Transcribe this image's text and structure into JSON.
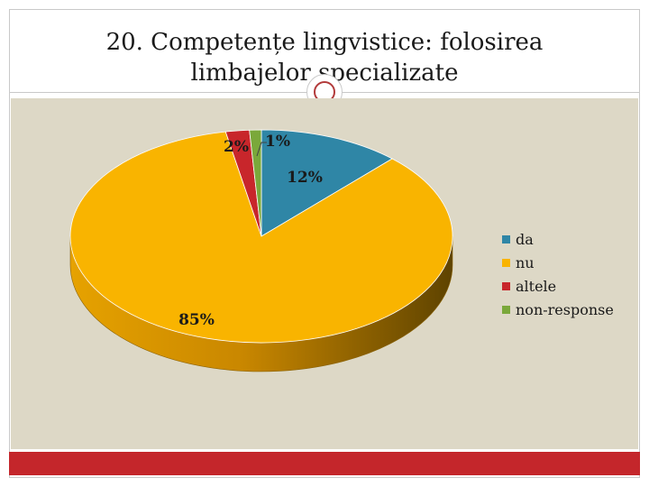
{
  "slide": {
    "title_line1": "20. Competențe lingvistice: folosirea",
    "title_line2": "limbajelor specializate"
  },
  "colors": {
    "plot_background": "#ddd8c6",
    "accent_bar": "#c4262b"
  },
  "chart_data": {
    "type": "pie",
    "title": "",
    "three_d": true,
    "legend_position": "right",
    "slices": [
      {
        "name": "da",
        "value": 12,
        "label": "12%",
        "color": "#2f86a6"
      },
      {
        "name": "nu",
        "value": 85,
        "label": "85%",
        "color": "#f9b400"
      },
      {
        "name": "altele",
        "value": 2,
        "label": "2%",
        "color": "#c8262b"
      },
      {
        "name": "non-response",
        "value": 1,
        "label": "1%",
        "color": "#7aa83a"
      }
    ]
  }
}
